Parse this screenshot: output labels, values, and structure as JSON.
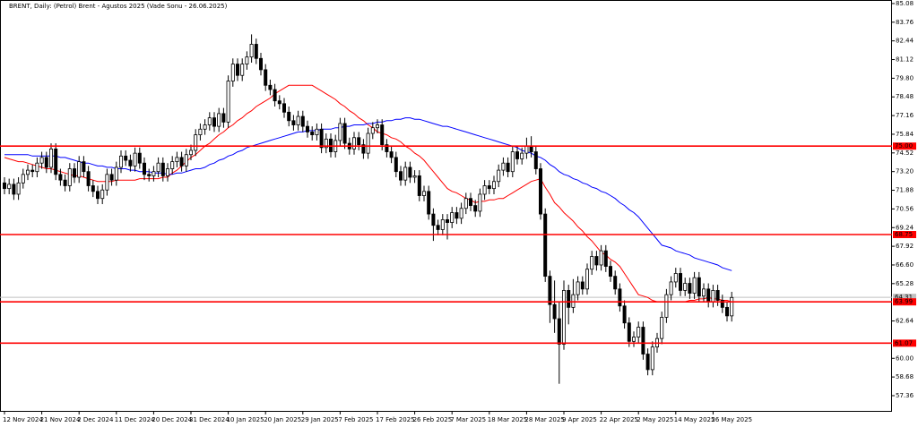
{
  "chart_data": {
    "type": "candlestick",
    "title": "BRENT, Daily:  (Petrol) Brent - Agustos 2025 (Vade Sonu - 26.06.2025)",
    "categories": [
      "12 Nov 2024",
      null,
      null,
      null,
      null,
      null,
      null,
      null,
      "21 Nov 2024",
      null,
      null,
      null,
      null,
      null,
      null,
      null,
      "2 Dec 2024",
      null,
      null,
      null,
      null,
      null,
      null,
      null,
      "11 Dec 2024",
      null,
      null,
      null,
      null,
      null,
      null,
      null,
      "20 Dec 2024",
      null,
      null,
      null,
      null,
      null,
      null,
      null,
      "31 Dec 2024",
      null,
      null,
      null,
      null,
      null,
      null,
      null,
      "10 Jan 2025",
      null,
      null,
      null,
      null,
      null,
      null,
      null,
      "20 Jan 2025",
      null,
      null,
      null,
      null,
      null,
      null,
      null,
      "29 Jan 2025",
      null,
      null,
      null,
      null,
      null,
      null,
      null,
      "7 Feb 2025",
      null,
      null,
      null,
      null,
      null,
      null,
      null,
      "17 Feb 2025",
      null,
      null,
      null,
      null,
      null,
      null,
      null,
      "26 Feb 2025",
      null,
      null,
      null,
      null,
      null,
      null,
      null,
      "7 Mar 2025",
      null,
      null,
      null,
      null,
      null,
      null,
      null,
      "18 Mar 2025",
      null,
      null,
      null,
      null,
      null,
      null,
      null,
      "28 Mar 2025",
      null,
      null,
      null,
      null,
      null,
      null,
      null,
      "9 Apr 2025",
      null,
      null,
      null,
      null,
      null,
      null,
      null,
      "22 Apr 2025",
      null,
      null,
      null,
      null,
      null,
      null,
      null,
      "2 May 2025",
      null,
      null,
      null,
      null,
      null,
      null,
      null,
      "14 May 2025",
      null,
      null,
      null,
      null,
      null,
      null,
      null,
      "26 May 2025",
      null,
      null,
      null,
      null
    ],
    "open": [
      72.4,
      72.0,
      72.3,
      71.6,
      72.4,
      73.0,
      73.3,
      73.2,
      73.8,
      74.2,
      73.5,
      74.8,
      73.0,
      72.6,
      72.2,
      73.4,
      72.8,
      73.9,
      73.2,
      72.2,
      71.8,
      71.3,
      71.9,
      73.0,
      72.6,
      73.5,
      74.3,
      74.0,
      73.6,
      74.5,
      73.8,
      73.0,
      72.9,
      73.2,
      73.8,
      72.9,
      73.4,
      73.9,
      74.2,
      73.6,
      74.4,
      74.7,
      75.8,
      76.2,
      76.5,
      77.0,
      76.4,
      77.3,
      76.7,
      79.6,
      80.8,
      80.0,
      80.8,
      81.3,
      82.2,
      81.2,
      80.4,
      79.3,
      79.0,
      78.2,
      78.0,
      77.4,
      76.8,
      76.5,
      77.1,
      76.4,
      76.0,
      75.8,
      76.2,
      74.9,
      75.5,
      74.6,
      75.4,
      76.6,
      75.2,
      74.8,
      75.6,
      75.1,
      74.5,
      75.9,
      76.3,
      76.5,
      75.1,
      74.6,
      74.2,
      73.2,
      72.6,
      73.5,
      72.8,
      72.9,
      71.5,
      71.8,
      70.2,
      69.4,
      69.1,
      69.8,
      69.6,
      70.3,
      69.9,
      70.6,
      71.3,
      70.8,
      70.4,
      71.6,
      72.2,
      72.0,
      72.5,
      73.3,
      73.8,
      73.2,
      74.6,
      74.1,
      74.5,
      75.0,
      74.6,
      73.4,
      70.2,
      65.8,
      63.8,
      62.8,
      61.0,
      64.8,
      63.6,
      64.5,
      65.4,
      64.9,
      66.3,
      67.2,
      66.6,
      67.6,
      66.5,
      65.8,
      64.9,
      63.7,
      62.5,
      61.2,
      61.5,
      62.2,
      60.3,
      59.2,
      60.8,
      61.4,
      62.9,
      64.5,
      65.4,
      66.0,
      64.8,
      65.3,
      64.6,
      65.7,
      64.4,
      64.9,
      64.0,
      64.8,
      64.1,
      63.6,
      63.0
    ],
    "high": [
      72.8,
      72.7,
      72.7,
      72.8,
      73.4,
      73.7,
      73.7,
      74.2,
      74.6,
      74.6,
      75.2,
      75.2,
      73.4,
      73.0,
      73.8,
      73.8,
      74.3,
      74.3,
      73.6,
      72.6,
      72.2,
      72.3,
      73.4,
      73.4,
      73.9,
      74.7,
      74.7,
      74.4,
      74.9,
      74.9,
      74.2,
      73.4,
      73.6,
      74.2,
      74.2,
      73.8,
      74.3,
      74.6,
      74.6,
      74.8,
      75.1,
      76.2,
      76.6,
      76.9,
      77.4,
      77.4,
      77.7,
      77.7,
      80.0,
      81.2,
      81.2,
      81.2,
      81.7,
      82.9,
      82.6,
      81.6,
      80.8,
      79.7,
      79.4,
      78.6,
      78.4,
      77.8,
      77.2,
      77.5,
      77.5,
      76.8,
      76.4,
      76.6,
      76.6,
      75.9,
      75.9,
      75.8,
      77.0,
      77.0,
      75.6,
      76.0,
      76.0,
      75.5,
      76.3,
      76.7,
      76.9,
      76.9,
      75.5,
      75.0,
      74.6,
      73.6,
      73.9,
      73.9,
      73.3,
      73.3,
      72.2,
      72.2,
      70.6,
      69.8,
      70.2,
      70.2,
      70.7,
      70.7,
      71.0,
      71.7,
      71.7,
      71.2,
      72.0,
      72.6,
      72.6,
      72.9,
      73.7,
      74.2,
      74.2,
      75.0,
      75.0,
      74.9,
      75.6,
      75.7,
      75.0,
      73.8,
      70.6,
      66.2,
      65.5,
      64.0,
      65.5,
      65.2,
      65.6,
      65.8,
      65.8,
      66.7,
      67.6,
      67.6,
      68.0,
      68.0,
      66.9,
      66.2,
      65.3,
      64.1,
      62.9,
      61.9,
      62.6,
      62.6,
      60.7,
      61.2,
      61.8,
      63.3,
      64.9,
      65.8,
      66.4,
      66.4,
      65.7,
      65.7,
      66.1,
      66.1,
      65.3,
      65.3,
      65.2,
      65.2,
      64.5,
      64.0,
      64.7
    ],
    "low": [
      71.6,
      71.6,
      71.2,
      71.2,
      72.0,
      72.6,
      72.8,
      72.8,
      73.4,
      73.1,
      73.1,
      72.6,
      72.2,
      71.8,
      71.8,
      72.4,
      72.4,
      72.8,
      71.8,
      71.4,
      70.9,
      70.9,
      71.5,
      72.2,
      72.2,
      73.1,
      73.6,
      73.2,
      73.2,
      73.4,
      72.6,
      72.5,
      72.5,
      72.8,
      72.5,
      72.5,
      73.0,
      73.5,
      73.2,
      73.2,
      74.0,
      74.3,
      75.4,
      75.8,
      76.1,
      76.0,
      76.0,
      76.3,
      76.3,
      79.2,
      79.6,
      79.6,
      80.4,
      80.9,
      80.8,
      80.0,
      78.9,
      78.6,
      77.8,
      77.6,
      77.0,
      76.4,
      76.1,
      76.1,
      76.0,
      75.6,
      75.4,
      75.4,
      74.5,
      74.5,
      74.2,
      74.2,
      75.0,
      74.8,
      74.4,
      74.4,
      74.7,
      74.1,
      74.1,
      75.5,
      75.9,
      74.7,
      74.2,
      73.8,
      72.8,
      72.2,
      72.2,
      72.4,
      72.4,
      71.1,
      71.1,
      69.8,
      68.3,
      68.7,
      68.7,
      68.4,
      69.2,
      69.5,
      69.5,
      70.2,
      70.4,
      70.0,
      70.0,
      71.2,
      71.6,
      71.6,
      72.1,
      72.9,
      72.8,
      72.8,
      73.7,
      73.7,
      74.1,
      74.2,
      73.0,
      69.8,
      65.4,
      62.5,
      61.8,
      58.2,
      60.6,
      62.4,
      63.2,
      64.1,
      64.5,
      64.5,
      65.9,
      66.2,
      66.2,
      66.1,
      65.4,
      64.5,
      63.3,
      62.1,
      60.8,
      60.8,
      61.1,
      59.9,
      58.8,
      58.8,
      60.4,
      61.0,
      62.5,
      64.1,
      65.0,
      64.4,
      64.4,
      64.2,
      64.2,
      64.0,
      64.0,
      63.6,
      63.6,
      63.7,
      63.2,
      62.6,
      62.6
    ],
    "close": [
      72.0,
      72.3,
      71.6,
      72.4,
      73.0,
      73.3,
      73.2,
      73.8,
      74.2,
      73.5,
      74.8,
      73.0,
      72.6,
      72.2,
      73.4,
      72.8,
      73.9,
      73.2,
      72.2,
      71.8,
      71.3,
      71.9,
      73.0,
      72.6,
      73.5,
      74.3,
      74.0,
      73.6,
      74.5,
      73.8,
      73.0,
      72.9,
      73.2,
      73.8,
      72.9,
      73.4,
      73.9,
      74.2,
      73.6,
      74.4,
      74.7,
      75.8,
      76.2,
      76.5,
      77.0,
      76.4,
      77.3,
      76.7,
      79.6,
      80.8,
      80.0,
      80.8,
      81.3,
      82.2,
      81.2,
      80.4,
      79.3,
      79.0,
      78.2,
      78.0,
      77.4,
      76.8,
      76.5,
      77.1,
      76.4,
      76.0,
      75.8,
      76.2,
      74.9,
      75.5,
      74.6,
      75.4,
      76.6,
      75.2,
      74.8,
      75.6,
      75.1,
      74.5,
      75.9,
      76.3,
      76.5,
      75.1,
      74.6,
      74.2,
      73.2,
      72.6,
      73.5,
      72.8,
      72.9,
      71.5,
      71.8,
      70.2,
      69.4,
      69.1,
      69.8,
      69.6,
      70.3,
      69.9,
      70.6,
      71.3,
      70.8,
      70.4,
      71.6,
      72.2,
      72.0,
      72.5,
      73.3,
      73.8,
      73.2,
      74.6,
      74.1,
      74.5,
      75.0,
      74.6,
      73.4,
      70.2,
      65.8,
      63.8,
      62.8,
      61.0,
      64.8,
      63.6,
      64.5,
      65.4,
      64.9,
      66.3,
      67.2,
      66.6,
      67.6,
      66.5,
      65.8,
      64.9,
      63.7,
      62.5,
      61.2,
      61.5,
      62.2,
      60.3,
      59.2,
      60.8,
      61.4,
      62.9,
      64.5,
      65.4,
      66.0,
      64.8,
      65.3,
      64.6,
      65.7,
      64.4,
      64.9,
      64.0,
      64.8,
      64.1,
      63.6,
      63.0,
      64.3
    ],
    "up_color": "#ffffff",
    "down_color": "#000000",
    "lines": [
      {
        "color": "#ff0000",
        "values": [
          74.2,
          74.1,
          74.0,
          73.9,
          73.9,
          73.8,
          73.7,
          73.6,
          73.5,
          73.4,
          73.4,
          73.3,
          73.2,
          73.1,
          73.0,
          72.9,
          72.9,
          72.8,
          72.7,
          72.6,
          72.5,
          72.5,
          72.5,
          72.5,
          72.6,
          72.6,
          72.6,
          72.6,
          72.6,
          72.7,
          72.7,
          72.7,
          72.7,
          72.7,
          72.8,
          72.8,
          73.1,
          73.3,
          73.6,
          73.9,
          74.2,
          74.4,
          74.7,
          75.0,
          75.2,
          75.5,
          75.8,
          76.0,
          76.3,
          76.5,
          76.8,
          77.0,
          77.3,
          77.5,
          77.8,
          78.0,
          78.2,
          78.4,
          78.7,
          78.9,
          79.1,
          79.3,
          79.3,
          79.3,
          79.3,
          79.3,
          79.3,
          79.1,
          78.9,
          78.7,
          78.5,
          78.3,
          78.0,
          77.8,
          77.5,
          77.3,
          77.0,
          76.8,
          76.5,
          76.3,
          76.0,
          75.9,
          75.8,
          75.6,
          75.5,
          75.3,
          75.0,
          74.8,
          74.5,
          74.3,
          74.0,
          73.6,
          73.2,
          72.8,
          72.4,
          72.0,
          71.8,
          71.7,
          71.5,
          71.3,
          71.2,
          71.0,
          71.1,
          71.1,
          71.2,
          71.2,
          71.3,
          71.3,
          71.5,
          71.7,
          71.9,
          72.1,
          72.3,
          72.5,
          72.6,
          72.7,
          72.1,
          71.6,
          71.0,
          70.7,
          70.3,
          70.0,
          69.7,
          69.3,
          69.0,
          68.6,
          68.3,
          67.9,
          67.5,
          67.3,
          67.0,
          66.8,
          66.5,
          66.0,
          65.5,
          65.0,
          64.5,
          64.4,
          64.3,
          64.1,
          64.0,
          64.0,
          64.0,
          64.0,
          64.0,
          64.0,
          64.0,
          64.1,
          64.1,
          64.2,
          64.2,
          64.3,
          64.2,
          64.2,
          64.1,
          64.1,
          64.0
        ]
      },
      {
        "color": "#0000ff",
        "values": [
          74.4,
          74.4,
          74.4,
          74.4,
          74.4,
          74.4,
          74.3,
          74.3,
          74.3,
          74.3,
          74.3,
          74.3,
          74.2,
          74.2,
          74.1,
          74.0,
          73.9,
          73.8,
          73.8,
          73.7,
          73.6,
          73.6,
          73.5,
          73.5,
          73.4,
          73.4,
          73.4,
          73.3,
          73.3,
          73.2,
          73.2,
          73.2,
          73.1,
          73.1,
          73.1,
          73.0,
          73.0,
          73.1,
          73.1,
          73.2,
          73.3,
          73.4,
          73.4,
          73.5,
          73.7,
          73.8,
          74.0,
          74.1,
          74.3,
          74.4,
          74.6,
          74.7,
          74.9,
          75.0,
          75.1,
          75.2,
          75.3,
          75.4,
          75.5,
          75.6,
          75.7,
          75.8,
          75.9,
          76.0,
          76.0,
          76.1,
          76.1,
          76.1,
          76.2,
          76.2,
          76.2,
          76.3,
          76.3,
          76.4,
          76.4,
          76.5,
          76.5,
          76.5,
          76.6,
          76.6,
          76.7,
          76.7,
          76.8,
          76.8,
          76.9,
          76.9,
          77.0,
          77.0,
          76.9,
          76.9,
          76.8,
          76.7,
          76.6,
          76.5,
          76.4,
          76.4,
          76.3,
          76.2,
          76.1,
          76.0,
          75.9,
          75.8,
          75.7,
          75.6,
          75.5,
          75.4,
          75.3,
          75.2,
          75.1,
          75.0,
          74.9,
          74.7,
          74.6,
          74.5,
          74.3,
          74.2,
          74.0,
          73.7,
          73.5,
          73.2,
          73.0,
          72.9,
          72.7,
          72.6,
          72.4,
          72.3,
          72.1,
          72.0,
          71.8,
          71.7,
          71.5,
          71.3,
          71.0,
          70.8,
          70.5,
          70.3,
          70.0,
          69.6,
          69.2,
          68.8,
          68.4,
          68.0,
          67.9,
          67.8,
          67.6,
          67.5,
          67.4,
          67.3,
          67.1,
          67.0,
          66.9,
          66.8,
          66.7,
          66.6,
          66.4,
          66.3,
          66.2
        ]
      }
    ],
    "levels": [
      {
        "value": 75.0,
        "label": "75.00"
      },
      68.75,
      63.99,
      61.07
    ],
    "level_color": "#ff0000",
    "price_line": {
      "value": 64.31,
      "label": "64.31"
    },
    "ylim": [
      56.22,
      85.33
    ],
    "yticks": [
      85.08,
      83.76,
      82.44,
      81.12,
      {
        "value": 79.8,
        "label": "79.80"
      },
      78.48,
      77.16,
      75.84,
      74.52,
      {
        "value": 73.2,
        "label": "73.20"
      },
      71.88,
      70.56,
      69.24,
      67.92,
      {
        "value": 66.6,
        "label": "66.60"
      },
      65.28,
      62.64,
      {
        "value": 60,
        "label": "60.00"
      },
      58.68,
      57.36
    ]
  }
}
